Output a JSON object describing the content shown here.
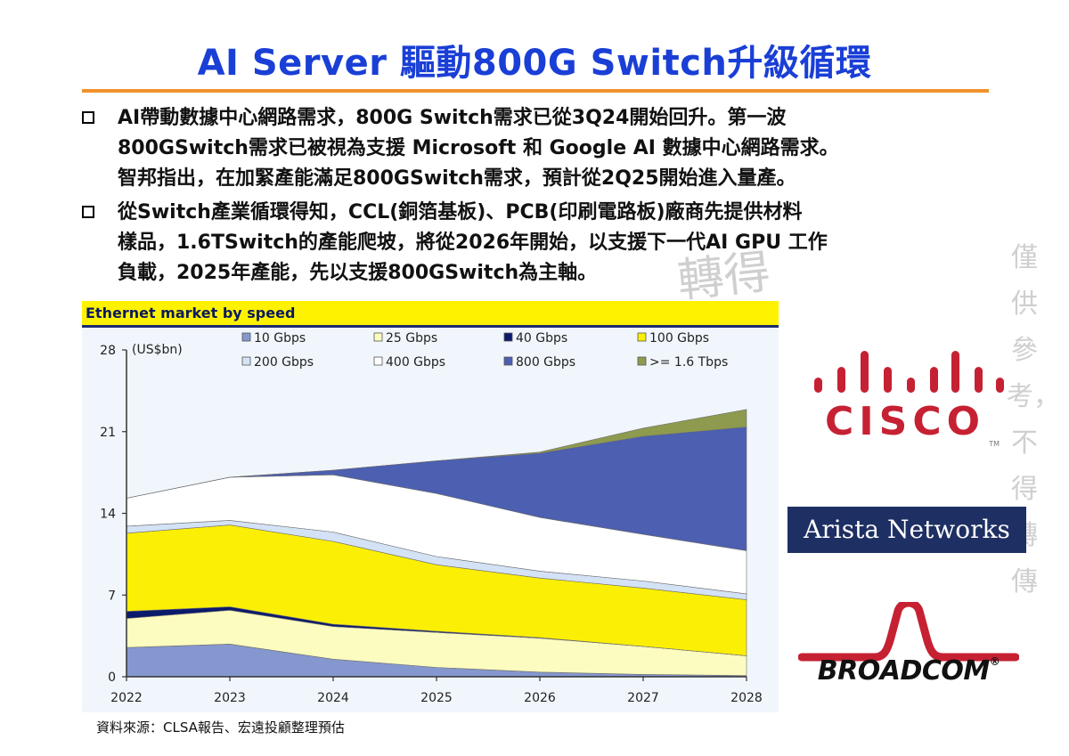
{
  "slide": {
    "title": "AI Server 驅動800G Switch升級循環",
    "bullets": [
      {
        "lines": [
          "AI帶動數據中心網路需求，800G  Switch需求已從3Q24開始回升。第一波",
          "800GSwitch需求已被視為支援 Microsoft 和 Google AI 數據中心網路需求。",
          "智邦指出，在加緊產能滿足800GSwitch需求，預計從2Q25開始進入量產。"
        ]
      },
      {
        "lines": [
          "從Switch產業循環得知，CCL(銅箔基板)、PCB(印刷電路板)廠商先提供材料",
          "樣品，1.6TSwitch的產能爬坡，將從2026年開始，以支援下一代AI GPU 工作",
          "負載，2025年產能，先以支援800GSwitch為主軸。"
        ]
      }
    ],
    "source": "資料來源：CLSA報告、宏遠投顧整理預估",
    "watermark": {
      "vertical": "僅供參考，不得轉傳",
      "horizontal": "轉得"
    }
  },
  "logos": {
    "cisco": {
      "text": "CISCO",
      "tm": "TM",
      "color": "#c62133"
    },
    "arista": {
      "text": "Arista Networks",
      "color": "#1e2f63"
    },
    "broadcom": {
      "text": "BROADCOM",
      "reg": "®",
      "color": "#c62133"
    }
  },
  "chart_data": {
    "type": "area",
    "stacked": true,
    "title": "Ethernet market by speed",
    "unit_label": "(US$bn)",
    "x": [
      "2022",
      "2023",
      "2024",
      "2025",
      "2026",
      "2027",
      "2028"
    ],
    "ylim": [
      0,
      28
    ],
    "yticks": [
      0,
      7,
      14,
      21,
      28
    ],
    "legend_position": "top",
    "series": [
      {
        "name": "10 Gbps",
        "color": "#8597cf",
        "values": [
          2.5,
          2.8,
          1.5,
          0.8,
          0.4,
          0.2,
          0.1
        ]
      },
      {
        "name": "25 Gbps",
        "color": "#fdfcc0",
        "values": [
          2.5,
          2.9,
          2.8,
          3.0,
          2.9,
          2.4,
          1.7
        ]
      },
      {
        "name": "40 Gbps",
        "color": "#0c1a6b",
        "values": [
          0.6,
          0.3,
          0.2,
          0.1,
          0.05,
          0.0,
          0.0
        ]
      },
      {
        "name": "100 Gbps",
        "color": "#fbef05",
        "values": [
          6.7,
          7.0,
          7.1,
          5.7,
          5.1,
          5.0,
          4.8
        ]
      },
      {
        "name": "200 Gbps",
        "color": "#d4e2f6",
        "values": [
          0.6,
          0.4,
          0.8,
          0.7,
          0.6,
          0.6,
          0.5
        ]
      },
      {
        "name": "400 Gbps",
        "color": "#ffffff",
        "values": [
          2.4,
          3.7,
          4.9,
          5.4,
          4.6,
          4.0,
          3.7
        ]
      },
      {
        "name": "800 Gbps",
        "color": "#4c5fb0",
        "values": [
          0.0,
          0.0,
          0.4,
          2.8,
          5.5,
          8.4,
          10.6
        ]
      },
      {
        "name": ">= 1.6 Tbps",
        "color": "#8e9a4e",
        "values": [
          0.0,
          0.0,
          0.0,
          0.0,
          0.1,
          0.7,
          1.5
        ]
      }
    ]
  }
}
